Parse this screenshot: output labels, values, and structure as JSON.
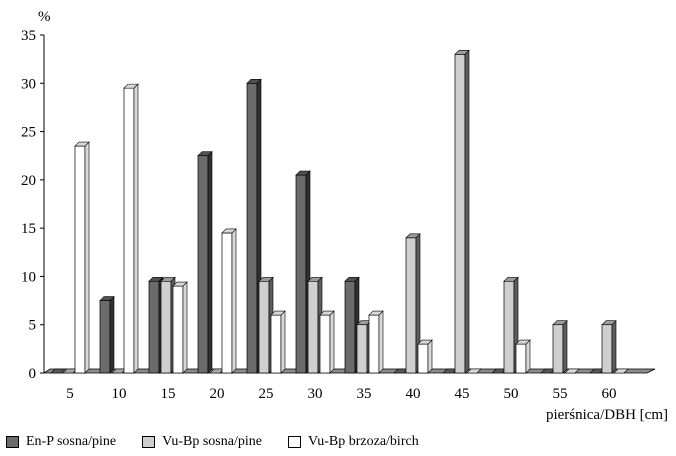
{
  "chart_data": {
    "type": "bar",
    "yunit": "%",
    "xlabel": "pierśnica/DBH [cm]",
    "ylabel": "",
    "ylim": [
      0,
      35
    ],
    "yticks": [
      0,
      5,
      10,
      15,
      20,
      25,
      30,
      35
    ],
    "categories": [
      "5",
      "10",
      "15",
      "20",
      "25",
      "30",
      "35",
      "40",
      "45",
      "50",
      "55",
      "60"
    ],
    "series": [
      {
        "name": "En-P sosna/pine",
        "color": "#6b6b6b",
        "values": [
          0,
          7.5,
          9.5,
          22.5,
          30,
          20.5,
          9.5,
          0,
          0,
          0,
          0,
          0
        ]
      },
      {
        "name": "Vu-Bp sosna/pine",
        "color": "#cfcfcf",
        "values": [
          0,
          0,
          9.5,
          0,
          9.5,
          9.5,
          5,
          14,
          33,
          9.5,
          5,
          5
        ]
      },
      {
        "name": "Vu-Bp brzoza/birch",
        "color": "#ffffff",
        "values": [
          23.5,
          29.5,
          9,
          14.5,
          6,
          6,
          6,
          3,
          0,
          3,
          0,
          0
        ]
      }
    ],
    "grid": false,
    "legend": "bottom-left"
  }
}
